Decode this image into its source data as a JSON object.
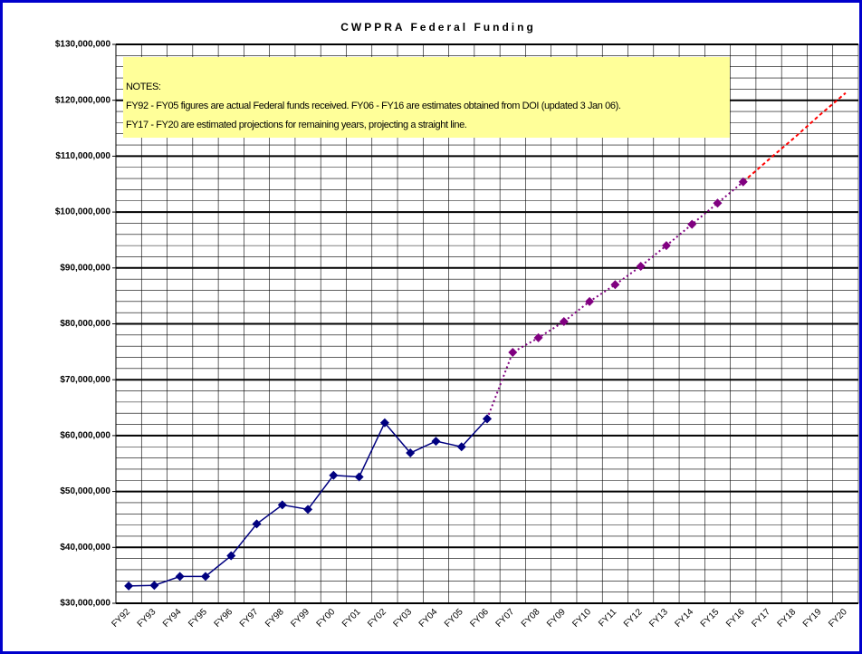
{
  "chart_data": {
    "type": "line",
    "title": "CWPPRA Federal Funding",
    "notes": [
      "NOTES:",
      "FY92 - FY05 figures are actual Federal funds received.  FY06 - FY16 are estimates obtained from DOI (updated 3 Jan 06).",
      "FY17 - FY20 are estimated projections for remaining years, projecting a straight line."
    ],
    "categories": [
      "FY92",
      "FY93",
      "FY94",
      "FY95",
      "FY96",
      "FY97",
      "FY98",
      "FY99",
      "FY00",
      "FY01",
      "FY02",
      "FY03",
      "FY04",
      "FY05",
      "FY06",
      "FY07",
      "FY08",
      "FY09",
      "FY10",
      "FY11",
      "FY12",
      "FY13",
      "FY14",
      "FY15",
      "FY16",
      "FY17",
      "FY18",
      "FY19",
      "FY20"
    ],
    "series": [
      {
        "color": "#000080",
        "line": "solid",
        "marker": true,
        "values": [
          33100000,
          33200000,
          34800000,
          34800000,
          38500000,
          44200000,
          47600000,
          46800000,
          52900000,
          52600000,
          62300000,
          56900000,
          59000000,
          58000000,
          63000000,
          null,
          null,
          null,
          null,
          null,
          null,
          null,
          null,
          null,
          null,
          null,
          null,
          null,
          null
        ]
      },
      {
        "color": "#800080",
        "line": "dotted",
        "marker": true,
        "values": [
          null,
          null,
          null,
          null,
          null,
          null,
          null,
          null,
          null,
          null,
          null,
          null,
          null,
          null,
          63000000,
          74900000,
          77500000,
          80400000,
          84000000,
          87000000,
          90300000,
          94000000,
          97800000,
          101600000,
          105400000,
          null,
          null,
          null,
          null
        ]
      },
      {
        "color": "#ff0000",
        "line": "dashed",
        "marker": false,
        "values": [
          null,
          null,
          null,
          null,
          null,
          null,
          null,
          null,
          null,
          null,
          null,
          null,
          null,
          null,
          null,
          null,
          null,
          null,
          null,
          null,
          null,
          null,
          null,
          null,
          105400000,
          109400000,
          113300000,
          117400000,
          121300000
        ]
      }
    ],
    "ylim": [
      30000000,
      130000000
    ],
    "yticks": [
      {
        "value": 30000000,
        "label": "$30,000,000"
      },
      {
        "value": 40000000,
        "label": "$40,000,000"
      },
      {
        "value": 50000000,
        "label": "$50,000,000"
      },
      {
        "value": 60000000,
        "label": "$60,000,000"
      },
      {
        "value": 70000000,
        "label": "$70,000,000"
      },
      {
        "value": 80000000,
        "label": "$80,000,000"
      },
      {
        "value": 90000000,
        "label": "$90,000,000"
      },
      {
        "value": 100000000,
        "label": "$100,000,000"
      },
      {
        "value": 110000000,
        "label": "$110,000,000"
      },
      {
        "value": 120000000,
        "label": "$120,000,000"
      },
      {
        "value": 130000000,
        "label": "$130,000,000"
      }
    ],
    "minor_grid_step": 2000000,
    "grid": true
  }
}
